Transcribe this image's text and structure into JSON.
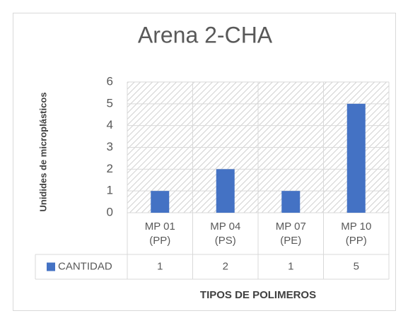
{
  "chart_data": {
    "type": "bar",
    "title": "Arena 2-CHA",
    "x_label": "TIPOS DE POLIMEROS",
    "y_label": "Unidides de microplásticos",
    "categories": [
      "MP 01 (PP)",
      "MP 04 (PS)",
      "MP 07 (PE)",
      "MP 10 (PP)"
    ],
    "series": [
      {
        "name": "CANTIDAD",
        "color": "#4472c4",
        "values": [
          1,
          2,
          1,
          5
        ]
      }
    ],
    "ylim": [
      0,
      6
    ],
    "yticks": [
      0,
      1,
      2,
      3,
      4,
      5,
      6
    ],
    "grid": true,
    "data_table": true
  }
}
